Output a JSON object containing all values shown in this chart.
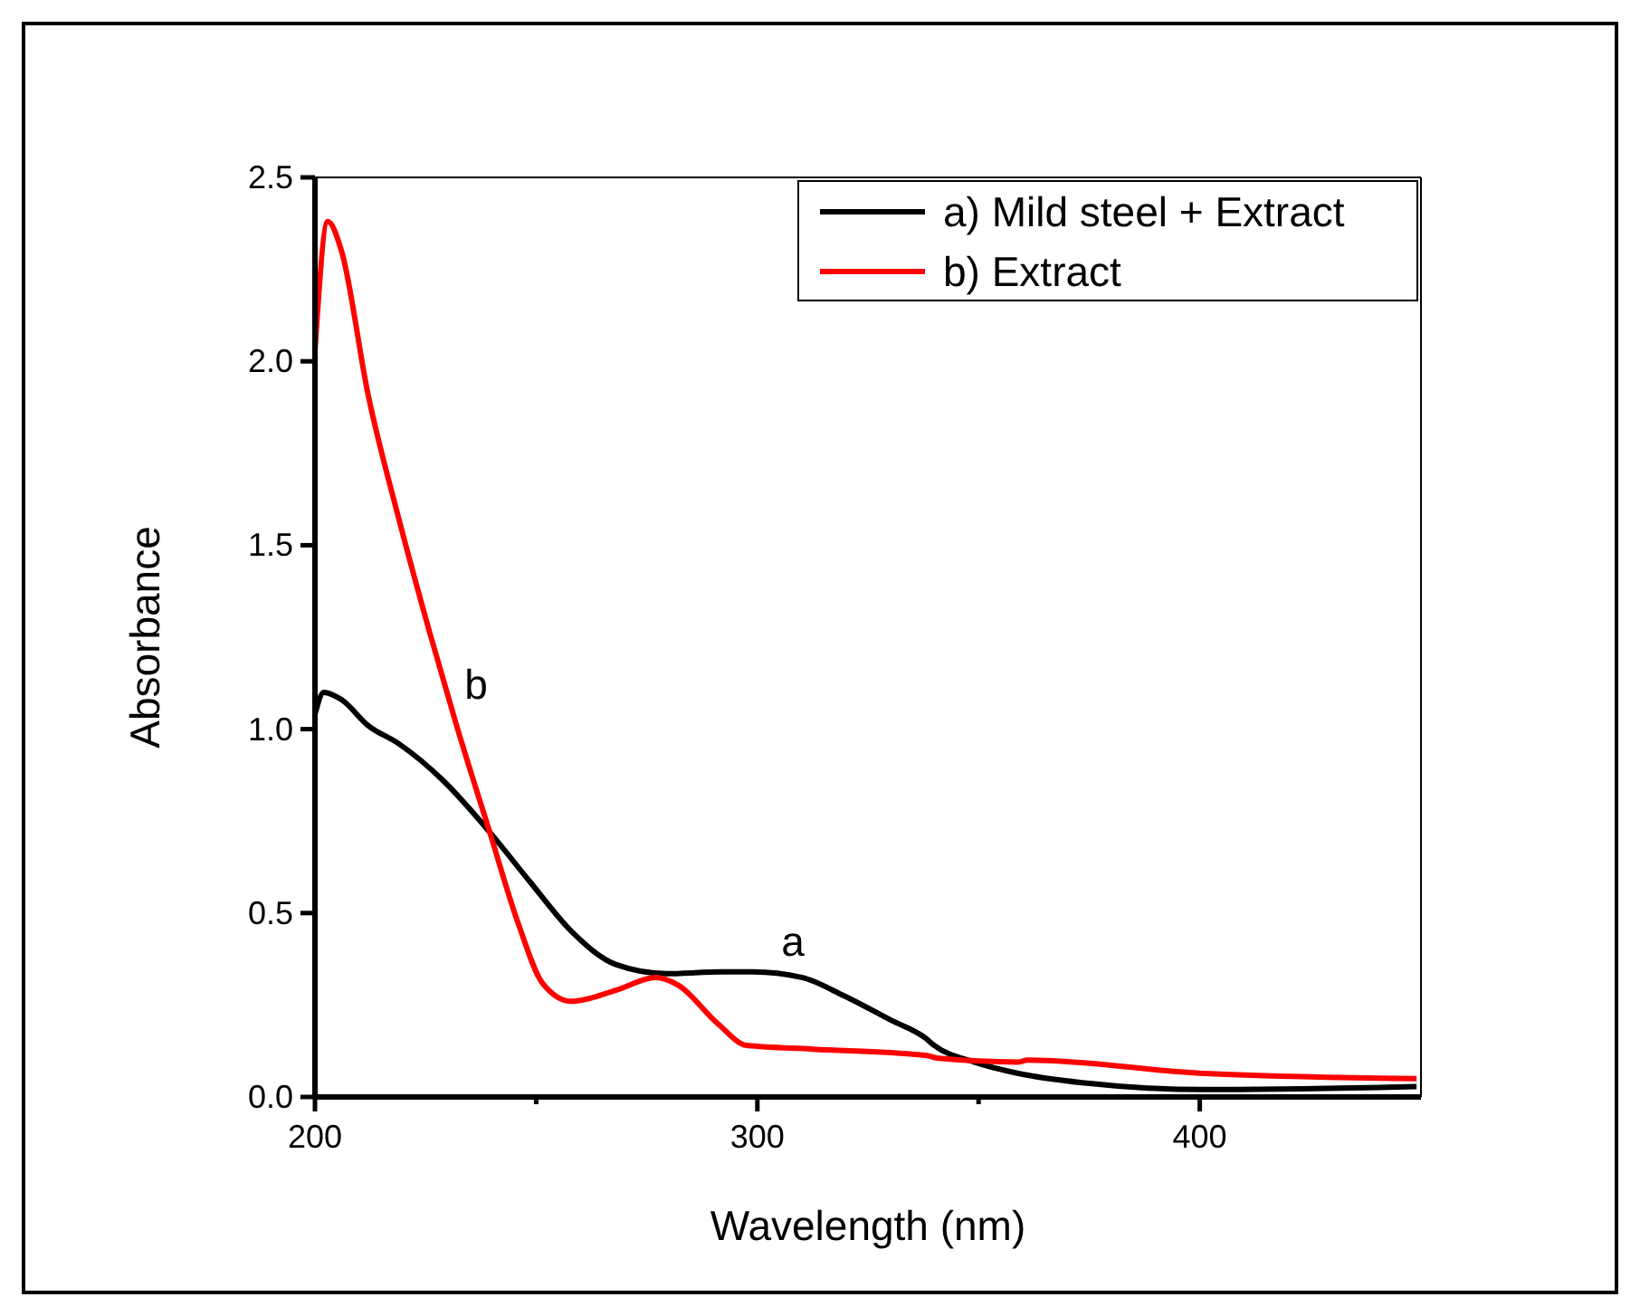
{
  "chart_data": {
    "type": "line",
    "xlabel": "Wavelength (nm)",
    "ylabel": "Absorbance",
    "xlim": [
      200,
      450
    ],
    "xticks": [
      200,
      {
        "value": 250,
        "label": null
      },
      300,
      {
        "value": 350,
        "label": null
      },
      400
    ],
    "ylim": [
      0,
      2.5
    ],
    "yticks": [
      {
        "value": 0,
        "label": "0.0"
      },
      0.5,
      {
        "value": 1,
        "label": "1.0"
      },
      1.5,
      {
        "value": 2,
        "label": "2.0"
      },
      2.5
    ],
    "legend": "top right",
    "grid": false,
    "line_style": "solid",
    "annotations": [
      "a",
      "b"
    ],
    "series": [
      {
        "name": "a) Mild steel + Extract",
        "color": "#000000",
        "x": [
          200,
          202,
          206,
          212,
          219,
          229,
          239.5,
          248.6,
          258,
          268,
          279.6,
          292,
          299,
          310,
          319.6,
          330,
          338,
          340,
          349,
          359,
          374,
          401,
          449
        ],
        "values": [
          1.04,
          1.1,
          1.08,
          1.01,
          0.96,
          0.86,
          0.72,
          0.585,
          0.45,
          0.36,
          0.335,
          0.34,
          0.34,
          0.325,
          0.275,
          0.21,
          0.16,
          0.14,
          0.095,
          0.064,
          0.038,
          0.02,
          0.028
        ]
      },
      {
        "name": "b) Extract",
        "color": "#ff0000",
        "x": [
          200,
          202.9,
          206,
          212,
          219,
          226,
          232,
          239.5,
          246,
          251.4,
          258,
          268,
          277,
          282,
          291,
          297.6,
          312.6,
          338,
          341,
          359,
          361,
          401,
          449
        ],
        "values": [
          2.03,
          2.38,
          2.3,
          1.91,
          1.57,
          1.26,
          1.01,
          0.72,
          0.47,
          0.31,
          0.26,
          0.29,
          0.325,
          0.305,
          0.2,
          0.14,
          0.13,
          0.113,
          0.105,
          0.095,
          0.1,
          0.064,
          0.05
        ]
      }
    ]
  }
}
